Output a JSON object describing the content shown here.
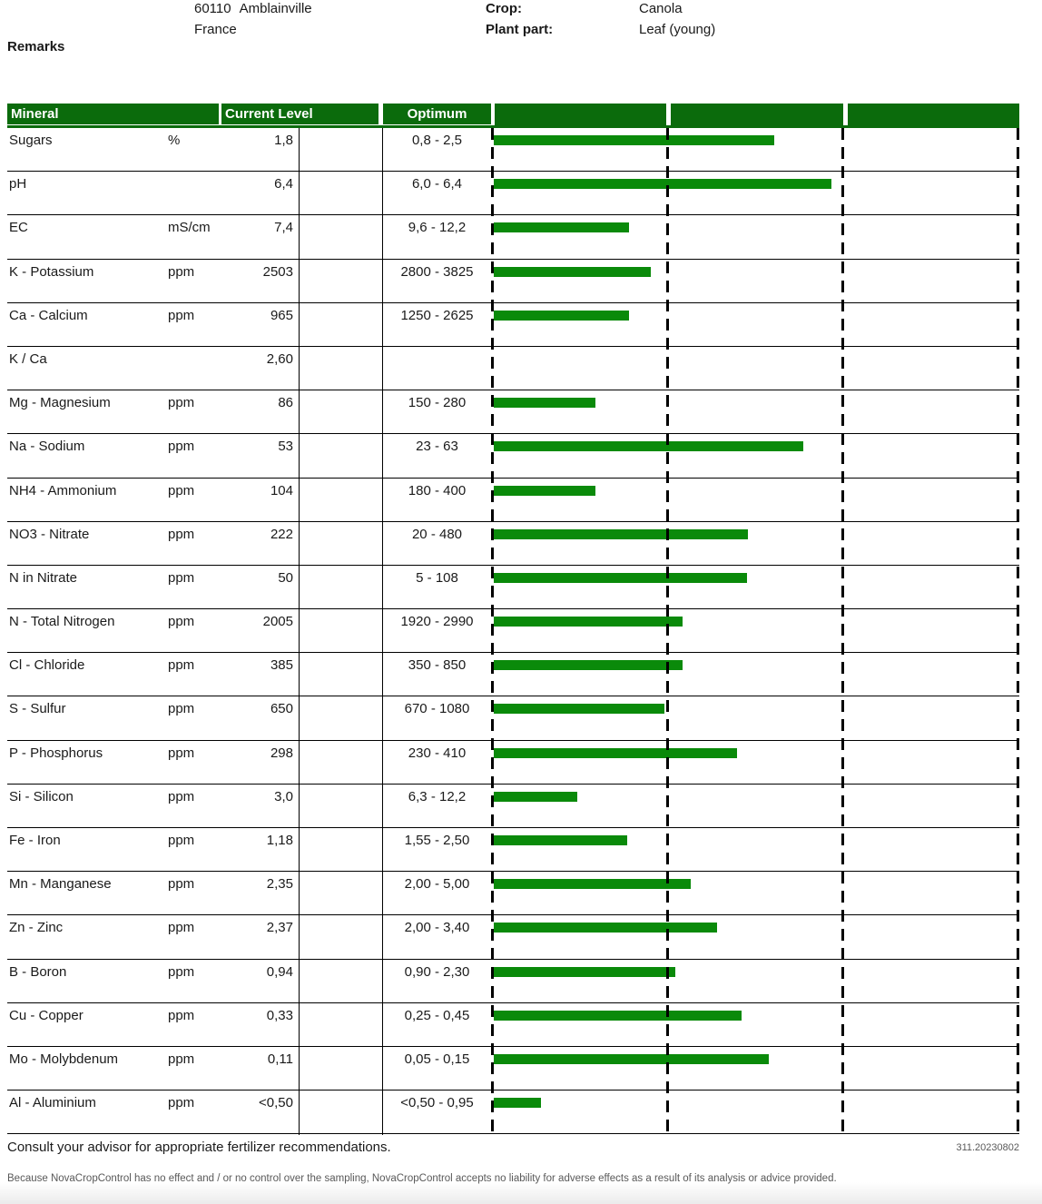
{
  "header": {
    "postal_code": "60110",
    "city": "Amblainville",
    "country": "France",
    "crop_label": "Crop:",
    "crop_value": "Canola",
    "plant_part_label": "Plant part:",
    "plant_part_value": "Leaf (young)",
    "remarks_label": "Remarks"
  },
  "table": {
    "headers": {
      "mineral": "Mineral",
      "current_level": "Current Level",
      "optimum": "Optimum"
    }
  },
  "chart_data": {
    "type": "bar",
    "orientation": "horizontal",
    "bar_color": "#0a8a0a",
    "axis_segments": [
      "below optimum minimum",
      "within optimum range",
      "above optimum maximum"
    ],
    "axis_note": "Bar area is divided by dashed gridlines into three equal segments; bar_frac is the bar length as a fraction of the full axis width.",
    "rows": [
      {
        "mineral": "Sugars",
        "unit": "%",
        "current": "1,8",
        "optimum": "0,8 - 2,5",
        "bar_frac": 0.534
      },
      {
        "mineral": "pH",
        "unit": "",
        "current": "6,4",
        "optimum": "6,0 - 6,4",
        "bar_frac": 0.643
      },
      {
        "mineral": "EC",
        "unit": "mS/cm",
        "current": "7,4",
        "optimum": "9,6 - 12,2",
        "bar_frac": 0.257
      },
      {
        "mineral": "K - Potassium",
        "unit": "ppm",
        "current": "2503",
        "optimum": "2800 - 3825",
        "bar_frac": 0.298
      },
      {
        "mineral": "Ca - Calcium",
        "unit": "ppm",
        "current": "965",
        "optimum": "1250 - 2625",
        "bar_frac": 0.258
      },
      {
        "mineral": "K / Ca",
        "unit": "",
        "current": "2,60",
        "optimum": "",
        "bar_frac": null
      },
      {
        "mineral": "Mg - Magnesium",
        "unit": "ppm",
        "current": "86",
        "optimum": "150 - 280",
        "bar_frac": 0.194
      },
      {
        "mineral": "Na - Sodium",
        "unit": "ppm",
        "current": "53",
        "optimum": "23 - 63",
        "bar_frac": 0.588
      },
      {
        "mineral": "NH4 - Ammonium",
        "unit": "ppm",
        "current": "104",
        "optimum": "180 - 400",
        "bar_frac": 0.194
      },
      {
        "mineral": "NO3 - Nitrate",
        "unit": "ppm",
        "current": "222",
        "optimum": "20 - 480",
        "bar_frac": 0.483
      },
      {
        "mineral": "N in Nitrate",
        "unit": "ppm",
        "current": "50",
        "optimum": "5 - 108",
        "bar_frac": 0.482
      },
      {
        "mineral": "N - Total Nitrogen",
        "unit": "ppm",
        "current": "2005",
        "optimum": "1920 - 2990",
        "bar_frac": 0.36
      },
      {
        "mineral": "Cl - Chloride",
        "unit": "ppm",
        "current": "385",
        "optimum": "350 - 850",
        "bar_frac": 0.359
      },
      {
        "mineral": "S - Sulfur",
        "unit": "ppm",
        "current": "650",
        "optimum": "670 - 1080",
        "bar_frac": 0.324
      },
      {
        "mineral": "P - Phosphorus",
        "unit": "ppm",
        "current": "298",
        "optimum": "230 - 410",
        "bar_frac": 0.463
      },
      {
        "mineral": "Si - Silicon",
        "unit": "ppm",
        "current": "3,0",
        "optimum": "6,3 - 12,2",
        "bar_frac": 0.158
      },
      {
        "mineral": "Fe - Iron",
        "unit": "ppm",
        "current": "1,18",
        "optimum": "1,55 - 2,50",
        "bar_frac": 0.253
      },
      {
        "mineral": "Mn - Manganese",
        "unit": "ppm",
        "current": "2,35",
        "optimum": "2,00 - 5,00",
        "bar_frac": 0.374
      },
      {
        "mineral": "Zn - Zinc",
        "unit": "ppm",
        "current": "2,37",
        "optimum": "2,00 - 3,40",
        "bar_frac": 0.425
      },
      {
        "mineral": "B - Boron",
        "unit": "ppm",
        "current": "0,94",
        "optimum": "0,90 - 2,30",
        "bar_frac": 0.345
      },
      {
        "mineral": "Cu - Copper",
        "unit": "ppm",
        "current": "0,33",
        "optimum": "0,25 - 0,45",
        "bar_frac": 0.471
      },
      {
        "mineral": "Mo - Molybdenum",
        "unit": "ppm",
        "current": "0,11",
        "optimum": "0,05 - 0,15",
        "bar_frac": 0.523
      },
      {
        "mineral": "Al - Aluminium",
        "unit": "ppm",
        "current": "<0,50",
        "optimum": "<0,50 - 0,95",
        "bar_frac": 0.09
      }
    ]
  },
  "footer": {
    "advice": "Consult your advisor for appropriate fertilizer recommendations.",
    "report_code": "311.20230802",
    "disclaimer": "Because NovaCropControl has no effect and / or no control over the sampling, NovaCropControl accepts no liability for adverse effects as a result of its analysis or advice provided."
  },
  "colors": {
    "header_green": "#0b6b0c",
    "bar_green": "#0a8a0a",
    "grid_line": "#000000",
    "muted_text": "#595959"
  }
}
